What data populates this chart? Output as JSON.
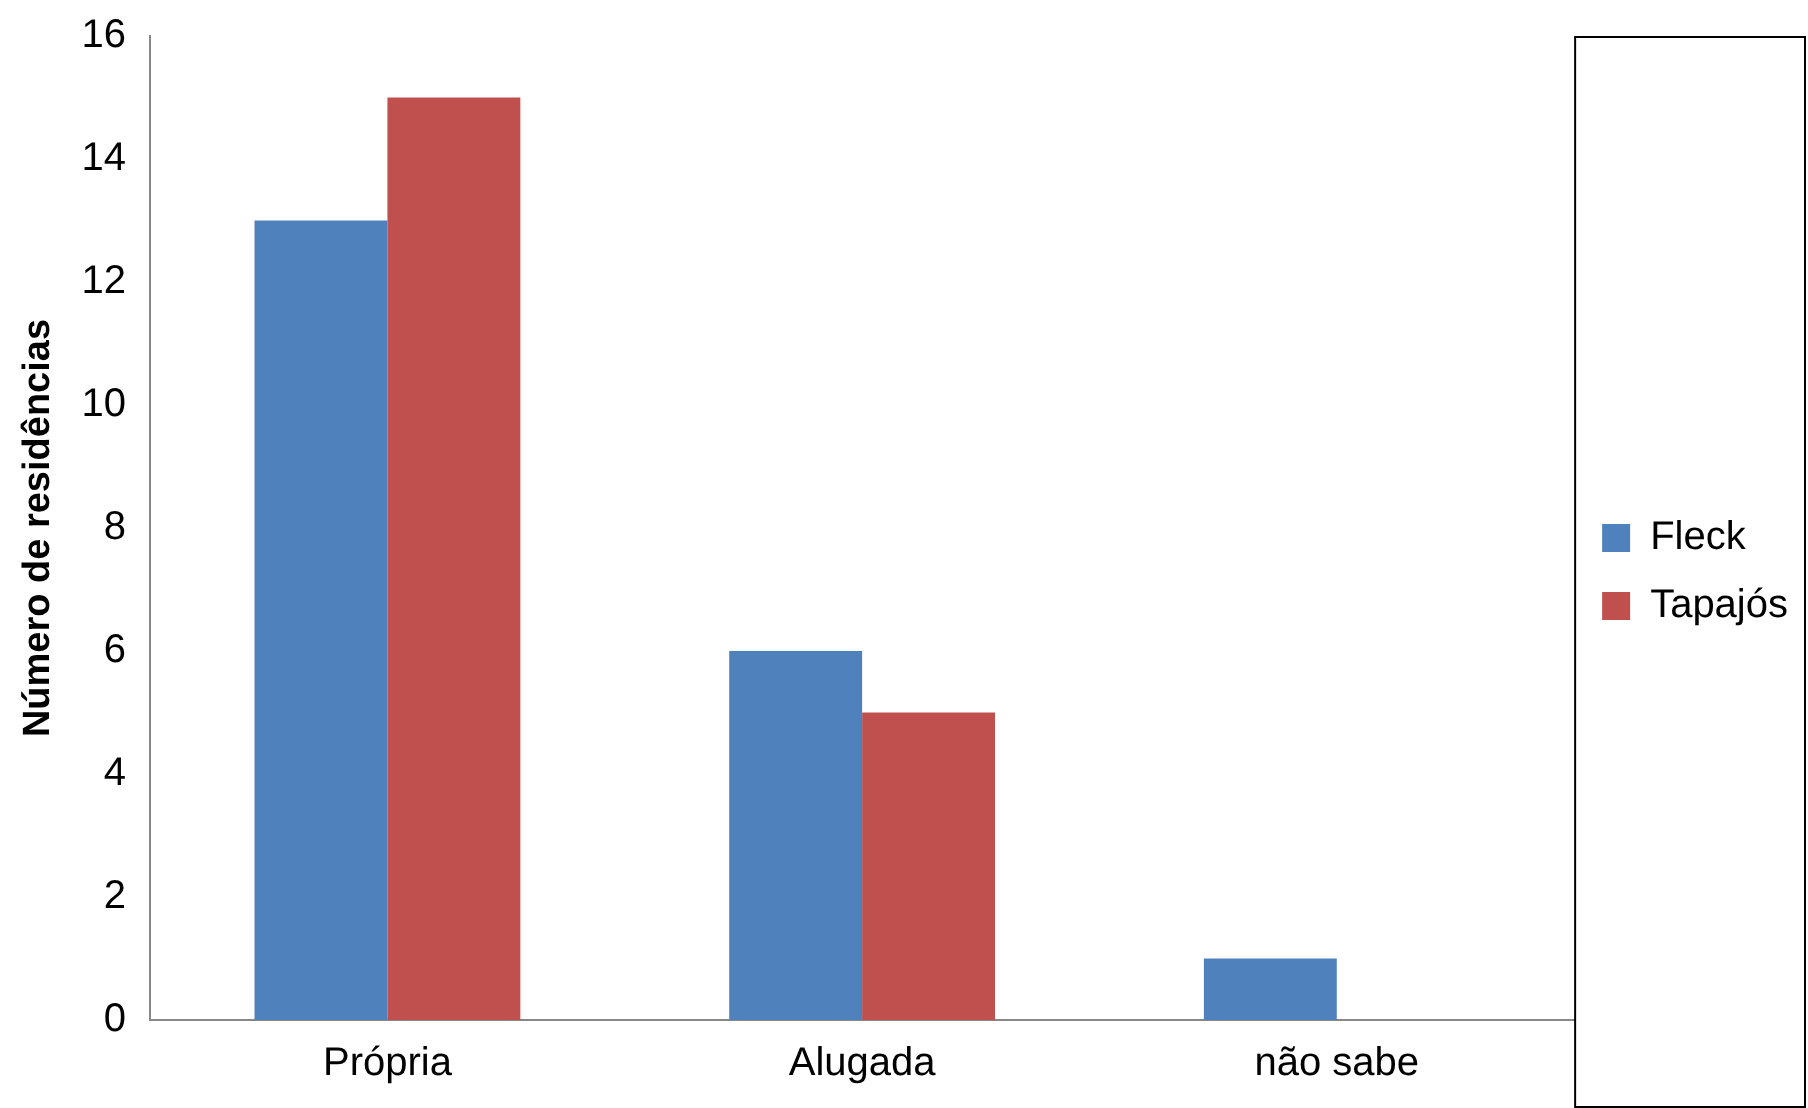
{
  "chart_data": {
    "type": "bar",
    "ylabel": "Número de residências",
    "categories": [
      "Própria",
      "Alugada",
      "não sabe"
    ],
    "series": [
      {
        "name": "Fleck",
        "color": "#4f81bd",
        "values": [
          13,
          6,
          1
        ]
      },
      {
        "name": "Tapajós",
        "color": "#c0504d",
        "values": [
          15,
          5,
          0
        ]
      }
    ],
    "ylim": [
      0,
      16
    ],
    "yticks": [
      0,
      2,
      4,
      6,
      8,
      10,
      12,
      14,
      16
    ],
    "grid": false,
    "legend": "right"
  }
}
